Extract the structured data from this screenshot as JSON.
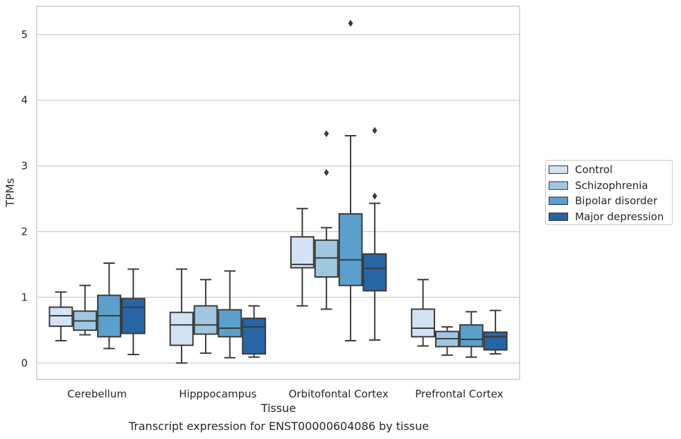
{
  "chart_data": {
    "type": "box",
    "title": "Transcript expression for ENST00000604086 by tissue",
    "xlabel": "Tissue",
    "ylabel": "TPMs",
    "ylim": [
      -0.25,
      5.43
    ],
    "yticks": [
      "0",
      "1",
      "2",
      "3",
      "4",
      "5"
    ],
    "grid": true,
    "legend_placement": "right",
    "categories": [
      "Cerebellum",
      "Hipppocampus",
      "Orbitofontal Cortex",
      "Prefrontal Cortex"
    ],
    "series": [
      {
        "name": "Control",
        "color": "#d4e3f3",
        "boxes": [
          {
            "whislo": 0.34,
            "q1": 0.56,
            "med": 0.72,
            "q3": 0.85,
            "whishi": 1.08,
            "fliers": []
          },
          {
            "whislo": 0.0,
            "q1": 0.27,
            "med": 0.58,
            "q3": 0.77,
            "whishi": 1.43,
            "fliers": []
          },
          {
            "whislo": 0.87,
            "q1": 1.45,
            "med": 1.5,
            "q3": 1.92,
            "whishi": 2.35,
            "fliers": []
          },
          {
            "whislo": 0.26,
            "q1": 0.4,
            "med": 0.53,
            "q3": 0.82,
            "whishi": 1.27,
            "fliers": []
          }
        ]
      },
      {
        "name": "Schizophrenia",
        "color": "#9fc8e0",
        "boxes": [
          {
            "whislo": 0.43,
            "q1": 0.5,
            "med": 0.64,
            "q3": 0.79,
            "whishi": 1.18,
            "fliers": []
          },
          {
            "whislo": 0.15,
            "q1": 0.44,
            "med": 0.58,
            "q3": 0.87,
            "whishi": 1.27,
            "fliers": []
          },
          {
            "whislo": 0.82,
            "q1": 1.31,
            "med": 1.6,
            "q3": 1.87,
            "whishi": 2.06,
            "fliers": [
              2.9,
              3.49
            ]
          },
          {
            "whislo": 0.12,
            "q1": 0.25,
            "med": 0.37,
            "q3": 0.48,
            "whishi": 0.55,
            "fliers": []
          }
        ]
      },
      {
        "name": "Bipolar disorder",
        "color": "#5b9fcc",
        "boxes": [
          {
            "whislo": 0.22,
            "q1": 0.4,
            "med": 0.72,
            "q3": 1.03,
            "whishi": 1.52,
            "fliers": []
          },
          {
            "whislo": 0.08,
            "q1": 0.4,
            "med": 0.53,
            "q3": 0.81,
            "whishi": 1.4,
            "fliers": []
          },
          {
            "whislo": 0.34,
            "q1": 1.18,
            "med": 1.57,
            "q3": 2.27,
            "whishi": 3.46,
            "fliers": [
              5.17
            ]
          },
          {
            "whislo": 0.09,
            "q1": 0.25,
            "med": 0.36,
            "q3": 0.58,
            "whishi": 0.78,
            "fliers": []
          }
        ]
      },
      {
        "name": "Major depression",
        "color": "#2766a6",
        "boxes": [
          {
            "whislo": 0.13,
            "q1": 0.45,
            "med": 0.85,
            "q3": 0.98,
            "whishi": 1.43,
            "fliers": []
          },
          {
            "whislo": 0.09,
            "q1": 0.14,
            "med": 0.55,
            "q3": 0.68,
            "whishi": 0.87,
            "fliers": []
          },
          {
            "whislo": 0.35,
            "q1": 1.1,
            "med": 1.44,
            "q3": 1.66,
            "whishi": 2.43,
            "fliers": [
              2.54,
              3.54
            ]
          },
          {
            "whislo": 0.14,
            "q1": 0.2,
            "med": 0.4,
            "q3": 0.47,
            "whishi": 0.8,
            "fliers": []
          }
        ]
      }
    ]
  }
}
